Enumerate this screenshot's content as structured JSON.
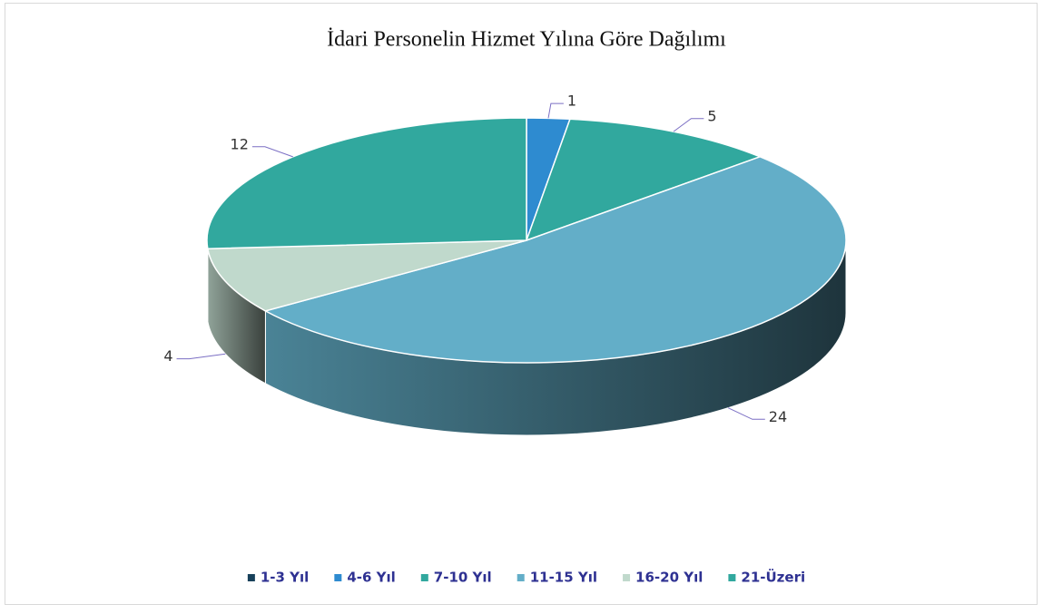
{
  "chart_data": {
    "type": "pie3d",
    "title": "İdari Personelin Hizmet Yılına Göre Dağılımı",
    "categories": [
      "1-3 Yıl",
      "4-6 Yıl",
      "7-10 Yıl",
      "11-15 Yıl",
      "16-20 Yıl",
      "21-Üzeri"
    ],
    "values": [
      0,
      1,
      5,
      24,
      4,
      12
    ],
    "colors": [
      "#17405a",
      "#2e8bd0",
      "#31a89e",
      "#63aec8",
      "#c0d9cc",
      "#31a89e"
    ],
    "legend": "bottom"
  }
}
